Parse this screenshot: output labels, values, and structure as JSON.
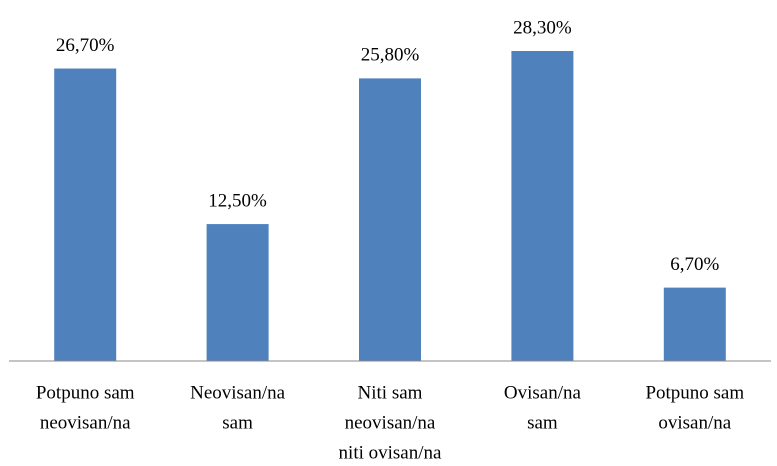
{
  "chart_data": {
    "type": "bar",
    "categories": [
      [
        "Potpuno sam",
        "neovisan/na"
      ],
      [
        "Neovisan/na",
        "sam"
      ],
      [
        "Niti sam",
        "neovisan/na",
        "niti ovisan/na"
      ],
      [
        "Ovisan/na",
        "sam"
      ],
      [
        "Potpuno sam",
        "ovisan/na"
      ]
    ],
    "values": [
      26.7,
      12.5,
      25.8,
      28.3,
      6.7
    ],
    "value_labels": [
      "26,70%",
      "12,50%",
      "25,80%",
      "28,30%",
      "6,70%"
    ],
    "color": "#4f81bd"
  }
}
